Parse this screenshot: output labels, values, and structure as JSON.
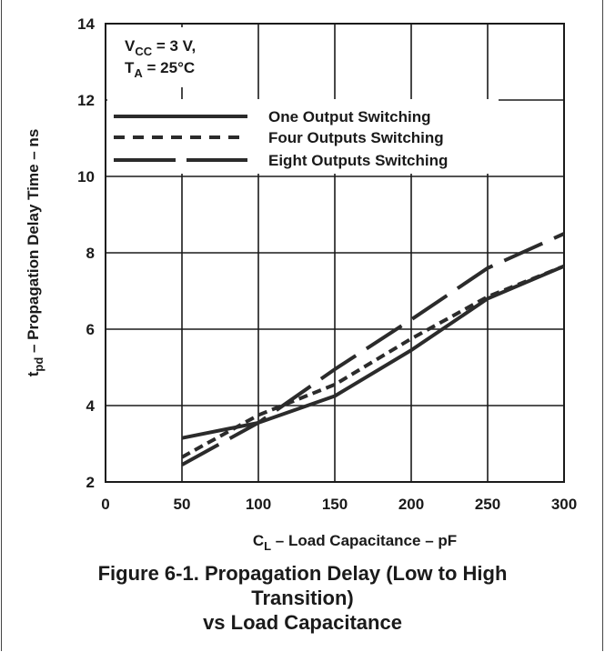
{
  "chart_data": {
    "type": "line",
    "xlabel_main": "C",
    "xlabel_sub": "L",
    "xlabel_rest": " – Load Capacitance – pF",
    "ylabel_main": "t",
    "ylabel_sub": "pd",
    "ylabel_rest": " – Propagation Delay Time – ns",
    "xlim": [
      0,
      300
    ],
    "ylim": [
      2,
      14
    ],
    "xticks": [
      "0",
      "50",
      "100",
      "150",
      "200",
      "250",
      "300"
    ],
    "yticks": [
      "2",
      "4",
      "6",
      "8",
      "10",
      "12",
      "14"
    ],
    "grid": true,
    "legend_position": "top-right",
    "conditions": {
      "line1_main": "V",
      "line1_sub": "CC",
      "line1_rest": " = 3 V,",
      "line2_main": "T",
      "line2_sub": "A",
      "line2_rest": " = 25°C"
    },
    "series": [
      {
        "name": "One Output Switching",
        "style": "solid",
        "x": [
          50,
          100,
          150,
          200,
          250,
          300
        ],
        "y": [
          3.15,
          3.55,
          4.25,
          5.45,
          6.8,
          7.65
        ]
      },
      {
        "name": "Four Outputs Switching",
        "style": "dashed",
        "x": [
          50,
          100,
          150,
          200,
          250,
          300
        ],
        "y": [
          2.65,
          3.75,
          4.55,
          5.75,
          6.85,
          7.65
        ]
      },
      {
        "name": "Eight Outputs Switching",
        "style": "long-dash",
        "x": [
          50,
          100,
          150,
          200,
          250,
          300
        ],
        "y": [
          2.45,
          3.55,
          4.95,
          6.25,
          7.6,
          8.5
        ]
      }
    ],
    "line_color": "#2b2b2b"
  },
  "caption": {
    "line1": "Figure 6-1. Propagation Delay (Low to High",
    "line2": "Transition)",
    "line3": "vs Load Capacitance"
  }
}
